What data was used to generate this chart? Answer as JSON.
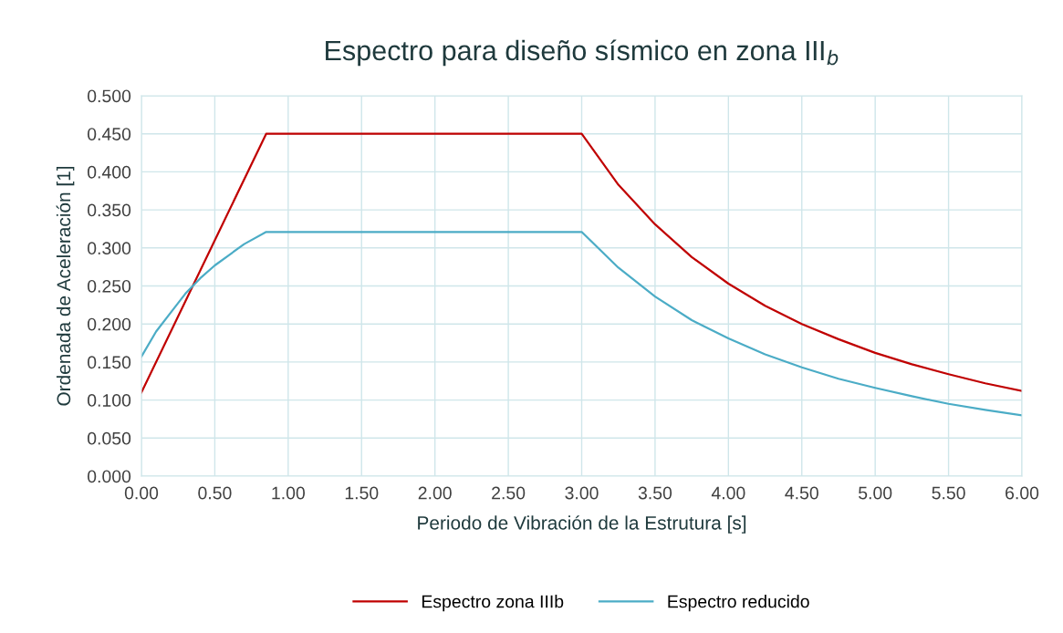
{
  "chart_data": {
    "type": "line",
    "title": "Espectro para diseño sísmico en zona III$_{b}$",
    "xlabel": "Periodo de Vibración de la Estrutura [s]",
    "ylabel": "Ordenada de Aceleración [1]",
    "xlim": [
      0,
      6
    ],
    "ylim": [
      0,
      0.5
    ],
    "xticks": [
      {
        "value": 0,
        "label": "0.00"
      },
      {
        "value": 0.5,
        "label": "0.50"
      },
      {
        "value": 1,
        "label": "1.00"
      },
      {
        "value": 1.5,
        "label": "1.50"
      },
      {
        "value": 2,
        "label": "2.00"
      },
      {
        "value": 2.5,
        "label": "2.50"
      },
      {
        "value": 3,
        "label": "3.00"
      },
      {
        "value": 3.5,
        "label": "3.50"
      },
      {
        "value": 4,
        "label": "4.00"
      },
      {
        "value": 4.5,
        "label": "4.50"
      },
      {
        "value": 5,
        "label": "5.00"
      },
      {
        "value": 5.5,
        "label": "5.50"
      },
      {
        "value": 6,
        "label": "6.00"
      }
    ],
    "yticks": [
      {
        "value": 0,
        "label": "0.000"
      },
      {
        "value": 0.05,
        "label": "0.050"
      },
      {
        "value": 0.1,
        "label": "0.100"
      },
      {
        "value": 0.15,
        "label": "0.150"
      },
      {
        "value": 0.2,
        "label": "0.200"
      },
      {
        "value": 0.25,
        "label": "0.250"
      },
      {
        "value": 0.3,
        "label": "0.300"
      },
      {
        "value": 0.35,
        "label": "0.350"
      },
      {
        "value": 0.4,
        "label": "0.400"
      },
      {
        "value": 0.45,
        "label": "0.450"
      },
      {
        "value": 0.5,
        "label": "0.500"
      }
    ],
    "grid": true,
    "legend": "bottom",
    "marker": "none",
    "line_style": "solid",
    "series": [
      {
        "name": "Espectro zona IIIb",
        "color": "#c00000",
        "x": [
          0,
          0.85,
          3,
          3.25,
          3.5,
          3.75,
          4,
          4.25,
          4.5,
          4.75,
          5,
          5.25,
          5.5,
          5.75,
          6
        ],
        "values": [
          0.11,
          0.45,
          0.45,
          0.383,
          0.331,
          0.288,
          0.253,
          0.224,
          0.2,
          0.18,
          0.162,
          0.147,
          0.134,
          0.122,
          0.112
        ]
      },
      {
        "name": "Espectro reducido",
        "color": "#4bacc6",
        "x": [
          0,
          0.1,
          0.2,
          0.3,
          0.4,
          0.5,
          0.6,
          0.7,
          0.85,
          3,
          3.25,
          3.5,
          3.75,
          4,
          4.25,
          4.5,
          4.75,
          5,
          5.25,
          5.5,
          5.75,
          6
        ],
        "values": [
          0.157,
          0.19,
          0.215,
          0.24,
          0.26,
          0.277,
          0.291,
          0.305,
          0.321,
          0.321,
          0.274,
          0.236,
          0.205,
          0.181,
          0.16,
          0.143,
          0.128,
          0.116,
          0.105,
          0.095,
          0.087,
          0.08
        ]
      }
    ]
  }
}
